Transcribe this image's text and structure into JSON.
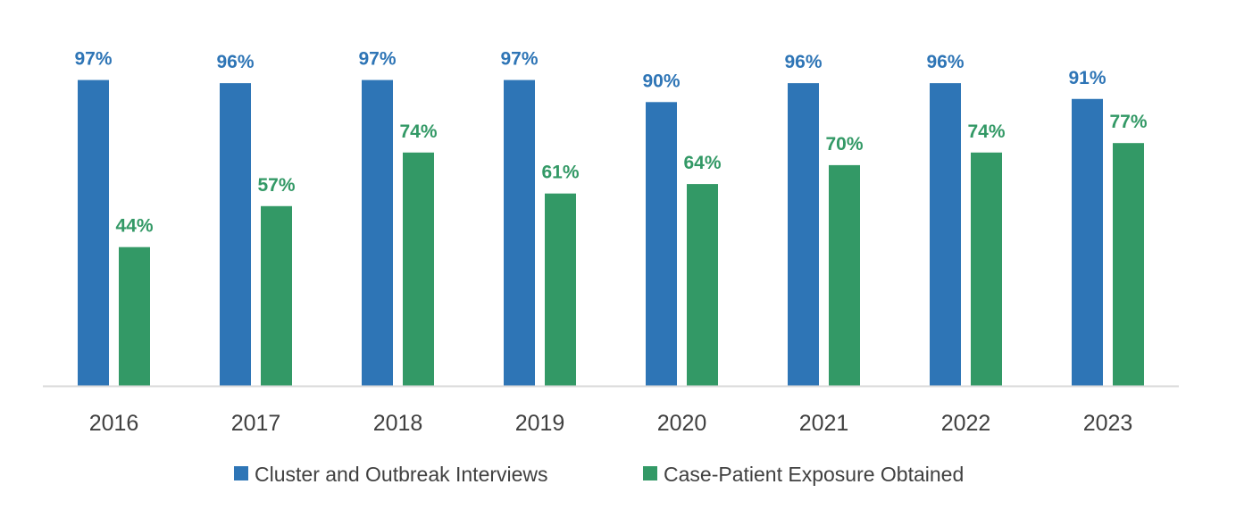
{
  "chart_data": {
    "type": "bar",
    "title": "",
    "xlabel": "",
    "ylabel": "",
    "ylim": [
      0,
      100
    ],
    "grid": false,
    "legend_position": "bottom",
    "categories": [
      "2016",
      "2017",
      "2018",
      "2019",
      "2020",
      "2021",
      "2022",
      "2023"
    ],
    "series": [
      {
        "name": "Cluster and Outbreak Interviews",
        "color": "#2E75B6",
        "values": [
          97,
          96,
          97,
          97,
          90,
          96,
          96,
          91
        ],
        "labels": [
          "97%",
          "96%",
          "97%",
          "97%",
          "90%",
          "96%",
          "96%",
          "91%"
        ]
      },
      {
        "name": "Case-Patient Exposure Obtained",
        "color": "#339966",
        "values": [
          44,
          57,
          74,
          61,
          64,
          70,
          74,
          77
        ],
        "labels": [
          "44%",
          "57%",
          "74%",
          "61%",
          "64%",
          "70%",
          "74%",
          "77%"
        ]
      }
    ],
    "axis_color": "#D9D9D9"
  }
}
